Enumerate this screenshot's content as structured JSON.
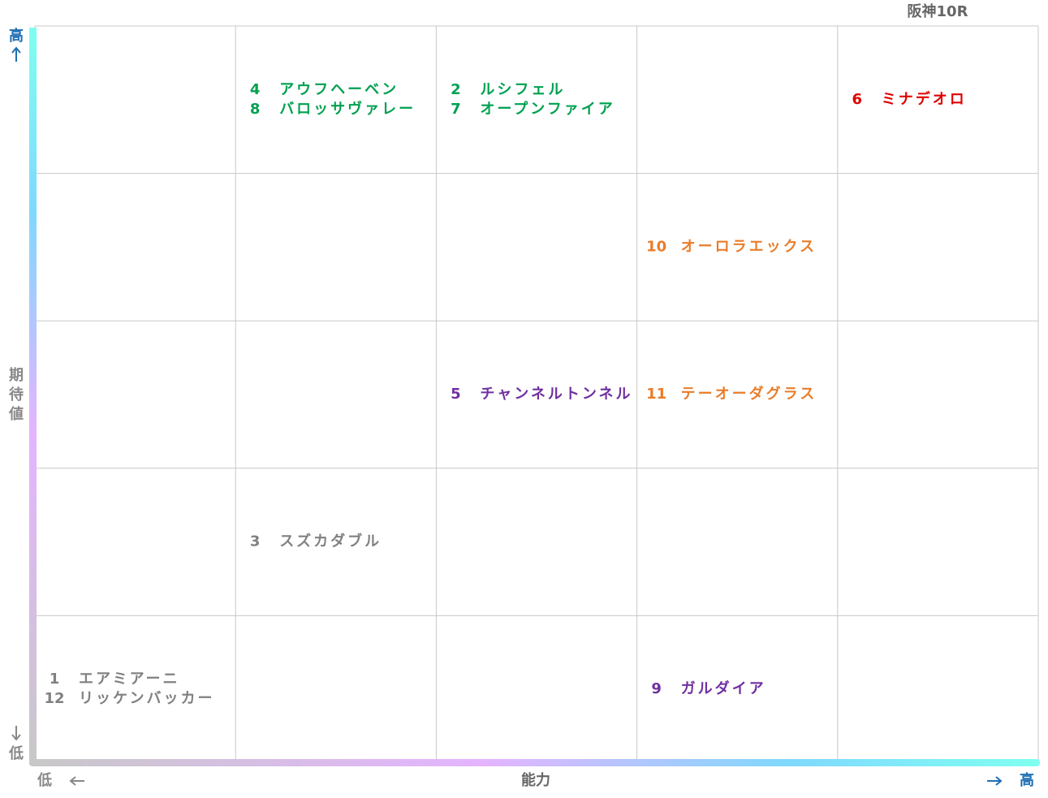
{
  "title": "阪神10R",
  "y_axis": {
    "label": "期待値",
    "high": "高",
    "low": "低"
  },
  "x_axis": {
    "label": "能力",
    "high": "高",
    "low": "低"
  },
  "grid": {
    "rows": [
      [
        [],
        [
          {
            "number": 4,
            "name": "アウフヘーベン",
            "color": "#00a050"
          },
          {
            "number": 8,
            "name": "バロッサヴァレー",
            "color": "#00a050"
          }
        ],
        [
          {
            "number": 2,
            "name": "ルシフェル",
            "color": "#00a050"
          },
          {
            "number": 7,
            "name": "オープンファイア",
            "color": "#00a050"
          }
        ],
        [],
        [
          {
            "number": 6,
            "name": "ミナデオロ",
            "color": "#e00000"
          }
        ]
      ],
      [
        [],
        [],
        [],
        [
          {
            "number": 10,
            "name": "オーロラエックス",
            "color": "#e87d2a"
          }
        ],
        []
      ],
      [
        [],
        [],
        [
          {
            "number": 5,
            "name": "チャンネルトンネル",
            "color": "#7030a0"
          }
        ],
        [
          {
            "number": 11,
            "name": "テーオーダグラス",
            "color": "#e87d2a"
          }
        ],
        []
      ],
      [
        [],
        [
          {
            "number": 3,
            "name": "スズカダブル",
            "color": "#808080"
          }
        ],
        [],
        [],
        []
      ],
      [
        [
          {
            "number": 1,
            "name": "エアミアーニ",
            "color": "#808080"
          },
          {
            "number": 12,
            "name": "リッケンバッカー",
            "color": "#808080"
          }
        ],
        [],
        [],
        [
          {
            "number": 9,
            "name": "ガルダイア",
            "color": "#7030a0"
          }
        ],
        []
      ]
    ]
  }
}
